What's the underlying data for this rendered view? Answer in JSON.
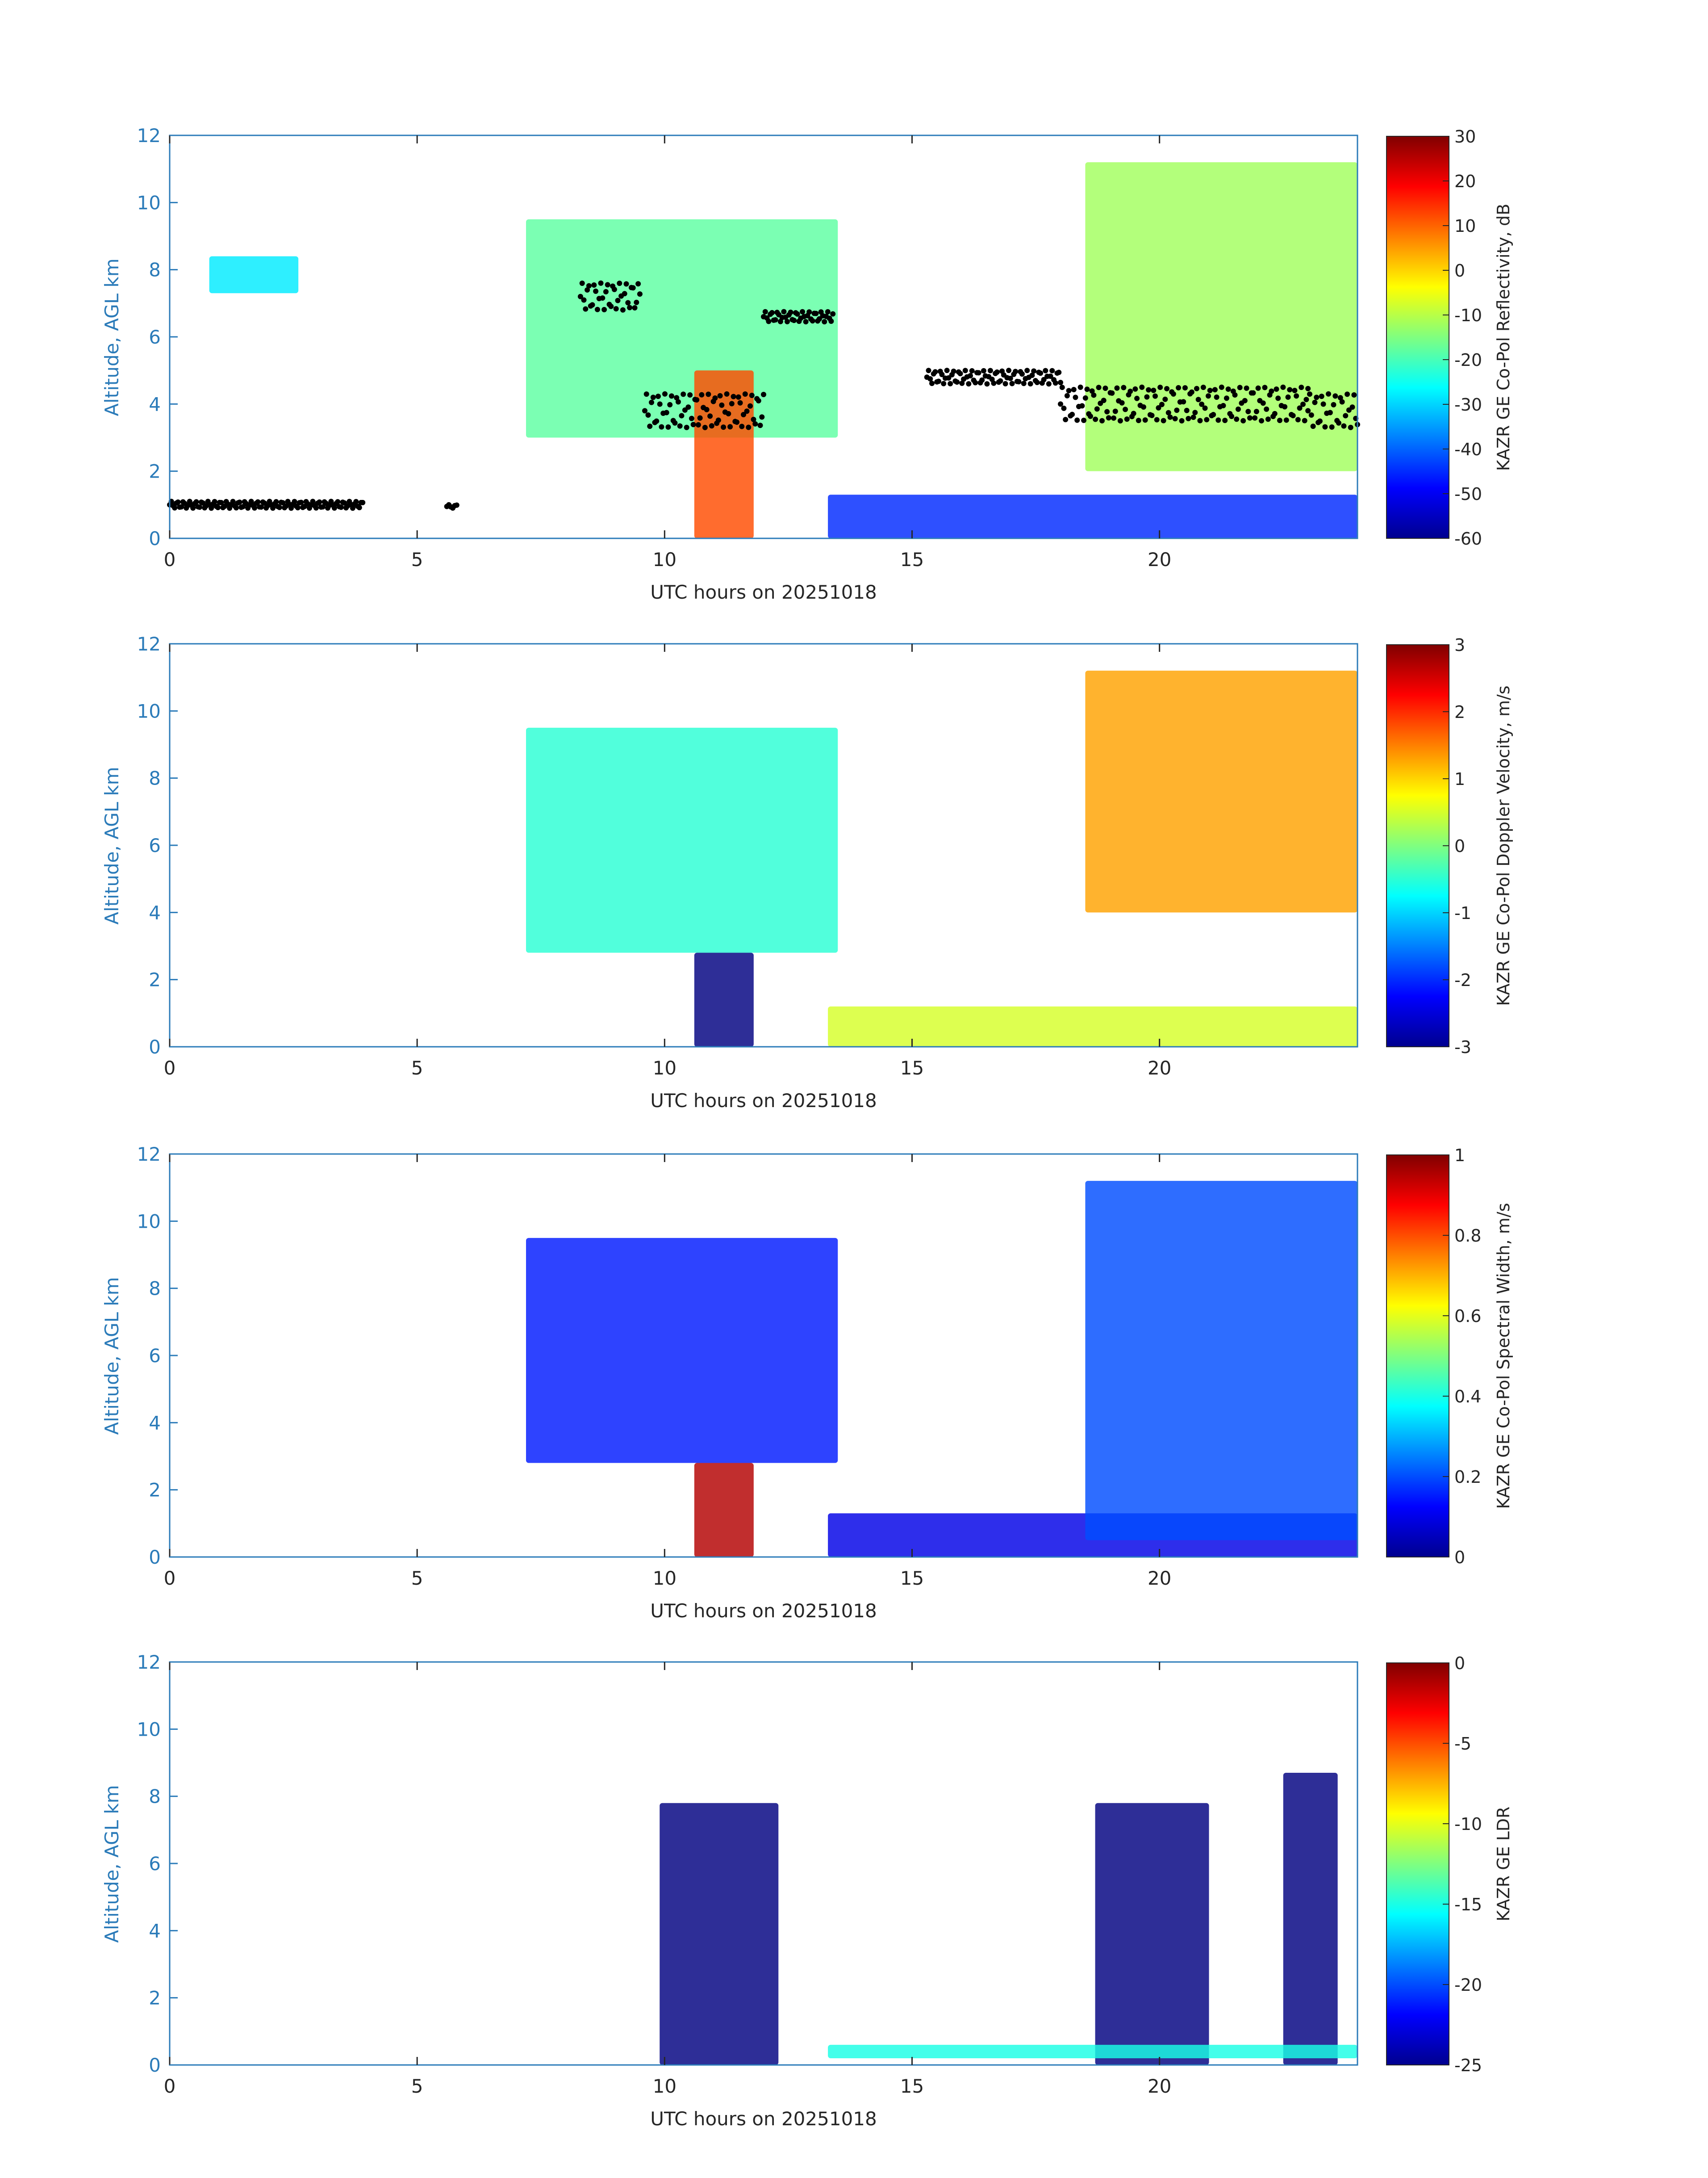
{
  "chart_data": [
    {
      "type": "heatmap",
      "xlabel": "UTC hours on 20251018",
      "ylabel": "Altitude, AGL km",
      "xlim": [
        0,
        24
      ],
      "ylim": [
        0,
        12
      ],
      "xticks": [
        "0",
        "5",
        "10",
        "15",
        "20"
      ],
      "yticks": [
        "0",
        "2",
        "4",
        "6",
        "8",
        "10",
        "12"
      ],
      "colorbar": {
        "label": "KAZR GE Co-Pol Reflectivity, dB",
        "range": [
          -60,
          30
        ],
        "ticks": [
          "30",
          "20",
          "10",
          "0",
          "-10",
          "-20",
          "-30",
          "-40",
          "-50",
          "-60"
        ]
      },
      "overlay_points": "cloud base height markers (black dots)",
      "field_features": [
        {
          "x0": 0.8,
          "x1": 2.6,
          "y0": 7.3,
          "y1": 8.4,
          "value": -28
        },
        {
          "x0": 7.2,
          "x1": 13.5,
          "y0": 3.0,
          "y1": 9.5,
          "value": -18
        },
        {
          "x0": 10.6,
          "x1": 11.8,
          "y0": 0.0,
          "y1": 5.0,
          "value": 12
        },
        {
          "x0": 13.3,
          "x1": 24.0,
          "y0": 0.0,
          "y1": 1.3,
          "value": -45
        },
        {
          "x0": 18.5,
          "x1": 24.0,
          "y0": 2.0,
          "y1": 11.2,
          "value": -12
        }
      ]
    },
    {
      "type": "heatmap",
      "xlabel": "UTC hours on 20251018",
      "ylabel": "Altitude, AGL km",
      "xlim": [
        0,
        24
      ],
      "ylim": [
        0,
        12
      ],
      "xticks": [
        "0",
        "5",
        "10",
        "15",
        "20"
      ],
      "yticks": [
        "0",
        "2",
        "4",
        "6",
        "8",
        "10",
        "12"
      ],
      "colorbar": {
        "label": "KAZR GE Co-Pol Doppler Velocity, m/s",
        "range": [
          -3,
          3
        ],
        "ticks": [
          "3",
          "2",
          "1",
          "0",
          "-1",
          "-2",
          "-3"
        ]
      },
      "field_features": [
        {
          "x0": 7.2,
          "x1": 13.5,
          "y0": 2.8,
          "y1": 9.5,
          "value": -0.5
        },
        {
          "x0": 10.6,
          "x1": 11.8,
          "y0": 0.0,
          "y1": 2.8,
          "value": -3
        },
        {
          "x0": 13.3,
          "x1": 24.0,
          "y0": 0.0,
          "y1": 1.2,
          "value": 0.5
        },
        {
          "x0": 18.5,
          "x1": 24.0,
          "y0": 4.0,
          "y1": 11.2,
          "value": 1.3
        }
      ]
    },
    {
      "type": "heatmap",
      "xlabel": "UTC hours on 20251018",
      "ylabel": "Altitude, AGL km",
      "xlim": [
        0,
        24
      ],
      "ylim": [
        0,
        12
      ],
      "xticks": [
        "0",
        "5",
        "10",
        "15",
        "20"
      ],
      "yticks": [
        "0",
        "2",
        "4",
        "6",
        "8",
        "10",
        "12"
      ],
      "colorbar": {
        "label": "KAZR GE Co-Pol Spectral Width, m/s",
        "range": [
          0,
          1
        ],
        "ticks": [
          "1",
          "0.8",
          "0.6",
          "0.4",
          "0.2",
          "0"
        ]
      },
      "field_features": [
        {
          "x0": 7.2,
          "x1": 13.5,
          "y0": 2.8,
          "y1": 9.5,
          "value": 0.15
        },
        {
          "x0": 10.6,
          "x1": 11.8,
          "y0": 0.0,
          "y1": 2.8,
          "value": 0.95
        },
        {
          "x0": 13.3,
          "x1": 24.0,
          "y0": 0.0,
          "y1": 1.3,
          "value": 0.1
        },
        {
          "x0": 18.5,
          "x1": 24.0,
          "y0": 0.5,
          "y1": 11.2,
          "value": 0.2
        }
      ]
    },
    {
      "type": "heatmap",
      "xlabel": "UTC hours on 20251018",
      "ylabel": "Altitude, AGL km",
      "xlim": [
        0,
        24
      ],
      "ylim": [
        0,
        12
      ],
      "xticks": [
        "0",
        "5",
        "10",
        "15",
        "20"
      ],
      "yticks": [
        "0",
        "2",
        "4",
        "6",
        "8",
        "10",
        "12"
      ],
      "colorbar": {
        "label": "KAZR GE LDR",
        "range": [
          -25,
          0
        ],
        "ticks": [
          "0",
          "-5",
          "-10",
          "-15",
          "-20",
          "-25"
        ]
      },
      "field_features": [
        {
          "x0": 9.9,
          "x1": 12.3,
          "y0": 0.0,
          "y1": 7.8,
          "value": -25
        },
        {
          "x0": 18.7,
          "x1": 21.0,
          "y0": 0.0,
          "y1": 7.8,
          "value": -25
        },
        {
          "x0": 22.5,
          "x1": 23.6,
          "y0": 0.0,
          "y1": 8.7,
          "value": -25
        },
        {
          "x0": 13.3,
          "x1": 24.0,
          "y0": 0.2,
          "y1": 0.6,
          "value": -15
        }
      ]
    }
  ]
}
